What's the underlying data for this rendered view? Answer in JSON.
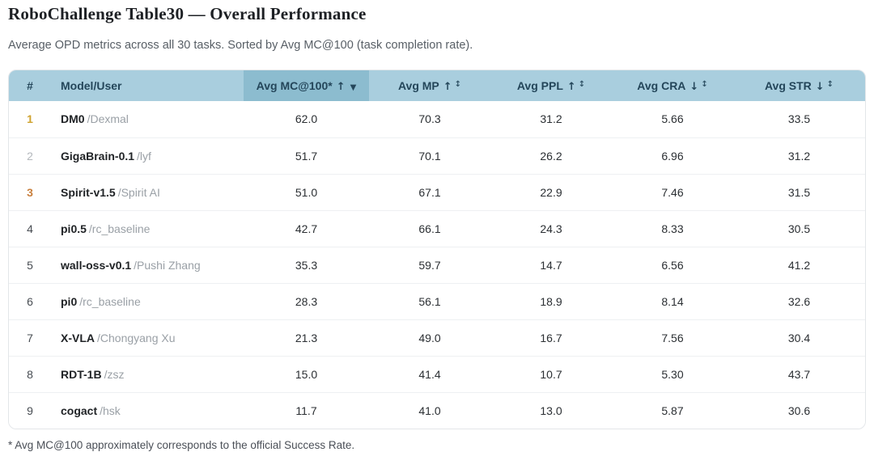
{
  "page": {
    "title": "RoboChallenge Table30 — Overall Performance",
    "subtitle": "Average OPD metrics across all 30 tasks. Sorted by Avg MC@100 (task completion rate).",
    "footnote": "* Avg MC@100 approximately corresponds to the official Success Rate."
  },
  "colors": {
    "header_bg": "#a9cede",
    "sorted_header_bg": "#8cbccf",
    "header_text": "#24465a",
    "rank_gold": "#cfa32f",
    "rank_silver": "#b4b8bc",
    "rank_bronze": "#c9803e"
  },
  "icons": {
    "sort_unsorted": "↕",
    "sort_descending_active": "▼",
    "higher_is_better": "↑",
    "lower_is_better": "↓"
  },
  "table": {
    "columns": {
      "rank": {
        "label": "#"
      },
      "model": {
        "label": "Model/User"
      },
      "mc": {
        "label": "Avg MC@100*",
        "direction": "↑",
        "sort_icon": "▼",
        "sorted": true
      },
      "mp": {
        "label": "Avg MP",
        "direction": "↑",
        "sort_icon": "↕",
        "sorted": false
      },
      "ppl": {
        "label": "Avg PPL",
        "direction": "↑",
        "sort_icon": "↕",
        "sorted": false
      },
      "cra": {
        "label": "Avg CRA",
        "direction": "↓",
        "sort_icon": "↕",
        "sorted": false
      },
      "str": {
        "label": "Avg STR",
        "direction": "↓",
        "sort_icon": "↕",
        "sorted": false
      }
    },
    "rows": [
      {
        "rank": "1",
        "medal": "gold",
        "model": "DM0",
        "user": "/Dexmal",
        "mc": "62.0",
        "mp": "70.3",
        "ppl": "31.2",
        "cra": "5.66",
        "str": "33.5"
      },
      {
        "rank": "2",
        "medal": "silver",
        "model": "GigaBrain-0.1",
        "user": "/lyf",
        "mc": "51.7",
        "mp": "70.1",
        "ppl": "26.2",
        "cra": "6.96",
        "str": "31.2"
      },
      {
        "rank": "3",
        "medal": "bronze",
        "model": "Spirit-v1.5",
        "user": "/Spirit AI",
        "mc": "51.0",
        "mp": "67.1",
        "ppl": "22.9",
        "cra": "7.46",
        "str": "31.5"
      },
      {
        "rank": "4",
        "medal": "",
        "model": "pi0.5",
        "user": "/rc_baseline",
        "mc": "42.7",
        "mp": "66.1",
        "ppl": "24.3",
        "cra": "8.33",
        "str": "30.5"
      },
      {
        "rank": "5",
        "medal": "",
        "model": "wall-oss-v0.1",
        "user": "/Pushi Zhang",
        "mc": "35.3",
        "mp": "59.7",
        "ppl": "14.7",
        "cra": "6.56",
        "str": "41.2"
      },
      {
        "rank": "6",
        "medal": "",
        "model": "pi0",
        "user": "/rc_baseline",
        "mc": "28.3",
        "mp": "56.1",
        "ppl": "18.9",
        "cra": "8.14",
        "str": "32.6"
      },
      {
        "rank": "7",
        "medal": "",
        "model": "X-VLA",
        "user": "/Chongyang Xu",
        "mc": "21.3",
        "mp": "49.0",
        "ppl": "16.7",
        "cra": "7.56",
        "str": "30.4"
      },
      {
        "rank": "8",
        "medal": "",
        "model": "RDT-1B",
        "user": "/zsz",
        "mc": "15.0",
        "mp": "41.4",
        "ppl": "10.7",
        "cra": "5.30",
        "str": "43.7"
      },
      {
        "rank": "9",
        "medal": "",
        "model": "cogact",
        "user": "/hsk",
        "mc": "11.7",
        "mp": "41.0",
        "ppl": "13.0",
        "cra": "5.87",
        "str": "30.6"
      }
    ]
  }
}
